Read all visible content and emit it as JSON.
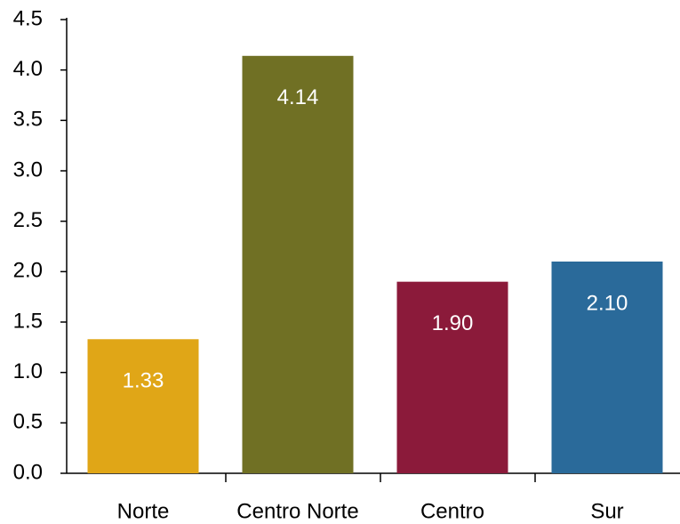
{
  "chart_data": {
    "type": "bar",
    "categories": [
      "Norte",
      "Centro Norte",
      "Centro",
      "Sur"
    ],
    "values": [
      1.33,
      4.14,
      1.9,
      2.1
    ],
    "value_labels": [
      "1.33",
      "4.14",
      "1.90",
      "2.10"
    ],
    "colors": [
      "#e0a617",
      "#707024",
      "#8b1a3a",
      "#2a6a9a"
    ],
    "ylim": [
      0,
      4.5
    ],
    "yticks": [
      {
        "value": 0,
        "label": "0.0"
      },
      0.5,
      {
        "value": 1,
        "label": "1.0"
      },
      1.5,
      {
        "value": 2,
        "label": "2.0"
      },
      2.5,
      {
        "value": 3,
        "label": "3.0"
      },
      3.5,
      {
        "value": 4,
        "label": "4.0"
      },
      4.5
    ],
    "grid": false
  }
}
